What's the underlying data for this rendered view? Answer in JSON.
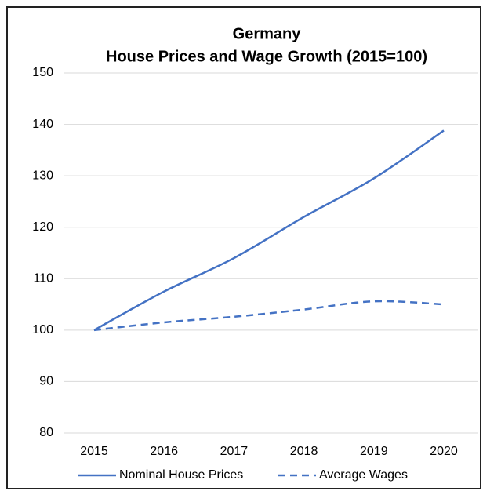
{
  "chart_data": {
    "type": "line",
    "title": "Germany",
    "subtitle": "House Prices and Wage Growth (2015=100)",
    "categories": [
      "2015",
      "2016",
      "2017",
      "2018",
      "2019",
      "2020"
    ],
    "series": [
      {
        "name": "Nominal House Prices",
        "color": "#4472c4",
        "dash": "solid",
        "values": [
          100,
          107.5,
          114,
          122,
          129.5,
          138.8
        ]
      },
      {
        "name": "Average Wages",
        "color": "#4472c4",
        "dash": "dashed",
        "values": [
          100,
          101.5,
          102.6,
          104,
          105.6,
          105
        ]
      }
    ],
    "ylim": [
      80,
      150
    ],
    "yticks": [
      80,
      90,
      100,
      110,
      120,
      130,
      140,
      150
    ],
    "grid": true,
    "legend": "bottom"
  }
}
